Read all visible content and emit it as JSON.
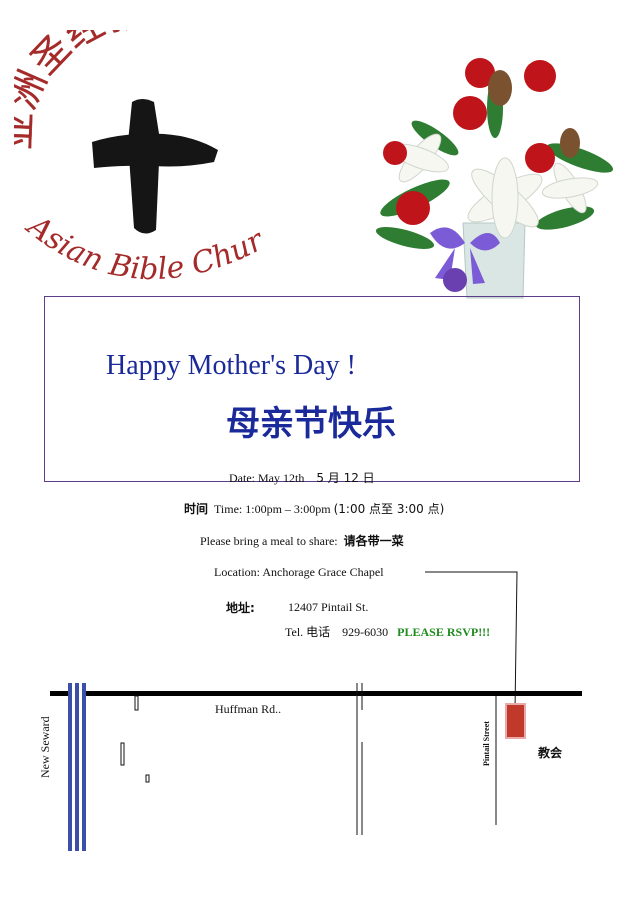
{
  "logo": {
    "chinese_name": "亚洲圣经教会",
    "english_name": "Asian Bible Church"
  },
  "title": {
    "english": "Happy Mother's Day !",
    "chinese": "母亲节快乐"
  },
  "date": {
    "label": "Date: May 12th",
    "chinese": "5 月 12 日"
  },
  "time": {
    "chinese_label": "时间",
    "text": "Time: 1:00pm – 3:00pm",
    "chinese": "(1:00 点至 3:00 点)"
  },
  "meal": {
    "text": "Please bring a meal to share:",
    "chinese": "请各带一菜"
  },
  "location": {
    "text": "Location:  Anchorage Grace Chapel"
  },
  "address": {
    "chinese_label": "地址:",
    "street": "12407 Pintail St."
  },
  "phone": {
    "label": "Tel.",
    "chinese_label": "电话",
    "number": "929-6030",
    "rsvp": "PLEASE RSVP!!!"
  },
  "map": {
    "road_main": "Huffman Rd..",
    "road_left": "New Seward",
    "road_right": "Pintail Street",
    "church_label": "教会",
    "church_color": "#c0392b"
  }
}
